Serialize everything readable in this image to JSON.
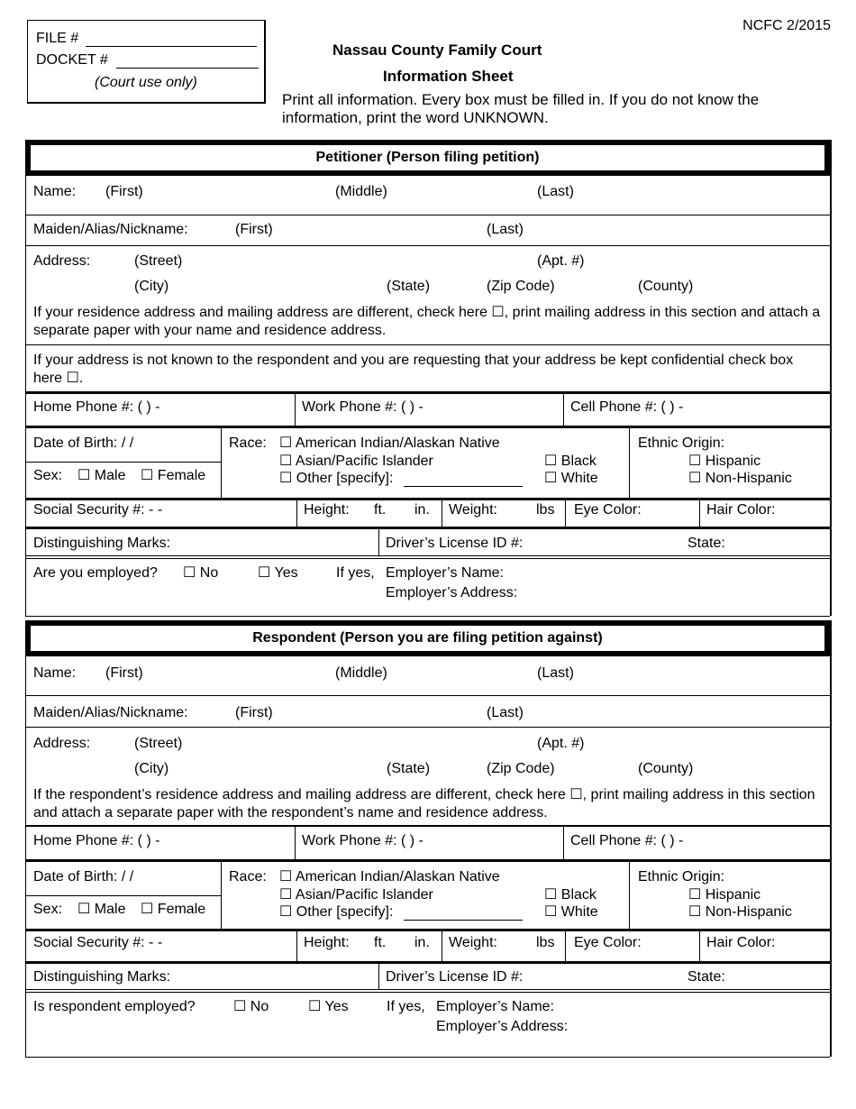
{
  "form_code": "NCFC  2/2015",
  "court_box": {
    "file_label": "FILE #",
    "docket_label": "DOCKET #",
    "note": "(Court use only)"
  },
  "title": {
    "line1": "Nassau County Family Court",
    "line2": "Information Sheet"
  },
  "instructions": "Print all information.  Every box must be filled in.  If you do not know the information, print the word UNKNOWN.",
  "petitioner": {
    "header": "Petitioner (Person filing petition)",
    "name": {
      "label": "Name:",
      "first": "(First)",
      "middle": "(Middle)",
      "last": "(Last)"
    },
    "maiden": {
      "label": "Maiden/Alias/Nickname:",
      "first": "(First)",
      "last": "(Last)"
    },
    "address": {
      "label": "Address:",
      "street": "(Street)",
      "apt": "(Apt. #)",
      "city": "(City)",
      "state": "(State)",
      "zip": "(Zip Code)",
      "county": "(County)",
      "note": "If your residence address and mailing address are different, check here ☐, print mailing address in this section and attach a separate paper with your name and residence address."
    },
    "confidential": "If your address is not known to the respondent and you are requesting that your address be kept confidential check box here ☐.",
    "phones": {
      "home": "Home Phone #:  (        )          -",
      "work": "Work Phone #:  (        )          -",
      "cell": "Cell Phone #:  (        )          -"
    },
    "dob": "Date of Birth:     /     /",
    "sex": {
      "label": "Sex:",
      "male": "Male",
      "female": "Female"
    },
    "race": {
      "label": "Race:",
      "american_indian": "American Indian/Alaskan Native",
      "asian": "Asian/Pacific Islander",
      "black": "Black",
      "other": "Other [specify]:",
      "white": "White"
    },
    "ethnic": {
      "label": "Ethnic Origin:",
      "hispanic": "Hispanic",
      "non_hispanic": "Non-Hispanic"
    },
    "ssn": "Social Security #:             -        -",
    "height": {
      "label": "Height:",
      "ft": "ft.",
      "in": "in."
    },
    "weight": {
      "label": "Weight:",
      "lbs": "lbs"
    },
    "eye": "Eye Color:",
    "hair": "Hair Color:",
    "marks": "Distinguishing Marks:",
    "license": "Driver’s License ID #:",
    "license_state": "State:",
    "employed": {
      "question": "Are you employed?",
      "no": "No",
      "yes": "Yes",
      "if_yes": "If yes,",
      "employer_name": "Employer’s Name:",
      "employer_address": "Employer’s Address:"
    }
  },
  "respondent": {
    "header": "Respondent (Person you are filing petition against)",
    "name": {
      "label": "Name:",
      "first": "(First)",
      "middle": "(Middle)",
      "last": "(Last)"
    },
    "maiden": {
      "label": "Maiden/Alias/Nickname:",
      "first": "(First)",
      "last": "(Last)"
    },
    "address": {
      "label": "Address:",
      "street": "(Street)",
      "apt": "(Apt. #)",
      "city": "(City)",
      "state": "(State)",
      "zip": "(Zip Code)",
      "county": "(County)",
      "note": "If the respondent’s residence address and mailing address are different, check here ☐, print mailing address in this section and attach a separate paper with the respondent’s name and residence address."
    },
    "phones": {
      "home": "Home Phone #:  (        )          -",
      "work": "Work Phone #:  (        )          -",
      "cell": "Cell Phone #:  (        )          -"
    },
    "dob": "Date of Birth:     /     /",
    "sex": {
      "label": "Sex:",
      "male": "Male",
      "female": "Female"
    },
    "race": {
      "label": "Race:",
      "american_indian": "American Indian/Alaskan Native",
      "asian": "Asian/Pacific Islander",
      "black": "Black",
      "other": "Other [specify]:",
      "white": "White"
    },
    "ethnic": {
      "label": "Ethnic Origin:",
      "hispanic": "Hispanic",
      "non_hispanic": "Non-Hispanic"
    },
    "ssn": "Social Security #:             -        -",
    "height": {
      "label": "Height:",
      "ft": "ft.",
      "in": "in."
    },
    "weight": {
      "label": "Weight:",
      "lbs": "lbs"
    },
    "eye": "Eye Color:",
    "hair": "Hair Color:",
    "marks": "Distinguishing Marks:",
    "license": "Driver’s License ID #:",
    "license_state": "State:",
    "employed": {
      "question": "Is respondent employed?",
      "no": "No",
      "yes": "Yes",
      "if_yes": "If yes,",
      "employer_name": "Employer’s Name:",
      "employer_address": "Employer’s Address:"
    }
  }
}
